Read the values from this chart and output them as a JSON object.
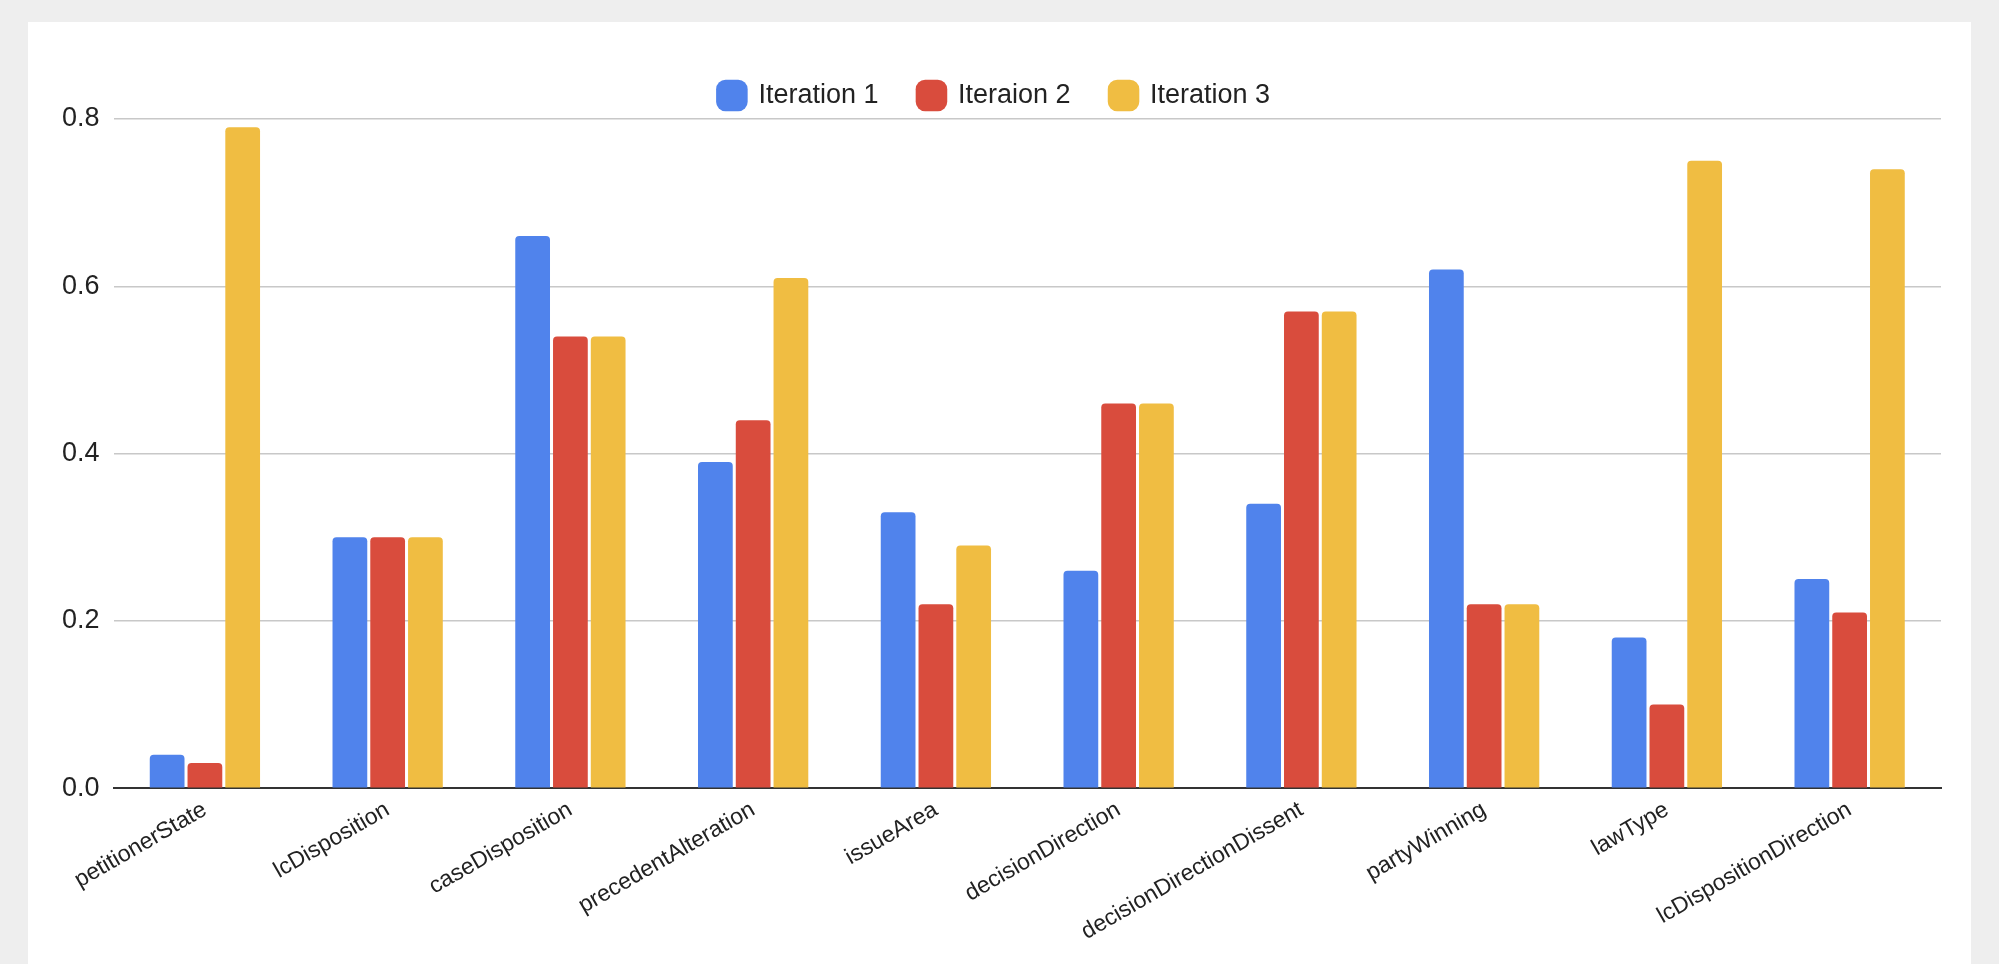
{
  "chart_data": {
    "type": "bar",
    "categories": [
      "petitionerState",
      "lcDisposition",
      "caseDisposition",
      "precedentAlteration",
      "issueArea",
      "decisionDirection",
      "decisionDirectionDissent",
      "partyWinning",
      "lawType",
      "lcDispositionDirection"
    ],
    "series": [
      {
        "name": "Iteration 1",
        "color": "#5083ec",
        "values": [
          0.04,
          0.3,
          0.66,
          0.39,
          0.33,
          0.26,
          0.34,
          0.62,
          0.18,
          0.25
        ]
      },
      {
        "name": "Iteraion 2",
        "color": "#d94c3d",
        "values": [
          0.03,
          0.3,
          0.54,
          0.44,
          0.22,
          0.46,
          0.57,
          0.22,
          0.1,
          0.21
        ]
      },
      {
        "name": "Iteration 3",
        "color": "#f0bd42",
        "values": [
          0.79,
          0.3,
          0.54,
          0.61,
          0.29,
          0.46,
          0.57,
          0.22,
          0.75,
          0.74
        ]
      }
    ],
    "ylim": [
      0,
      0.8
    ],
    "yticks": [
      {
        "value": 0,
        "label": "0.0"
      },
      {
        "value": 0.2,
        "label": "0.2"
      },
      {
        "value": 0.4,
        "label": "0.4"
      },
      {
        "value": 0.6,
        "label": "0.6"
      },
      {
        "value": 0.8,
        "label": "0.8"
      }
    ],
    "grid": "y",
    "legend": "top"
  }
}
